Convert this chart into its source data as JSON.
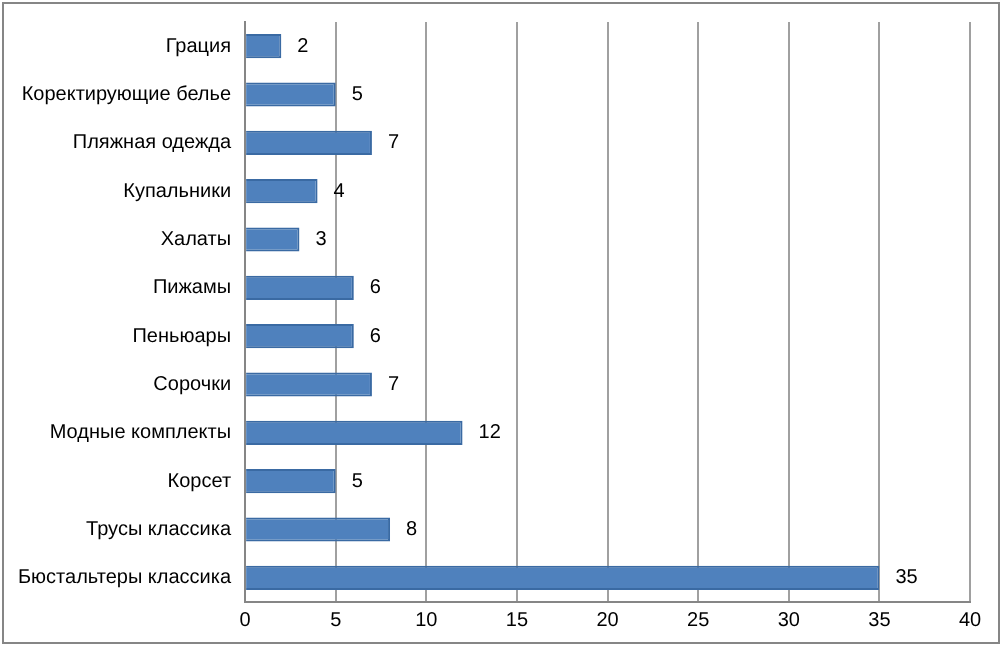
{
  "chart_data": {
    "type": "bar",
    "orientation": "horizontal",
    "categories": [
      "Грация",
      "Коректирующие белье",
      "Пляжная одежда",
      "Купальники",
      "Халаты",
      "Пижамы",
      "Пеньюары",
      "Сорочки",
      "Модные комплекты",
      "Корсет",
      "Трусы классика",
      "Бюстальтеры классика"
    ],
    "values": [
      2,
      5,
      7,
      4,
      3,
      6,
      6,
      7,
      12,
      5,
      8,
      35
    ],
    "color": "#4f81bd",
    "xlim": [
      0,
      40
    ],
    "xticks": [
      0,
      5,
      10,
      15,
      20,
      25,
      30,
      35,
      40
    ],
    "grid": "x",
    "data_labels": true,
    "legend": false
  }
}
